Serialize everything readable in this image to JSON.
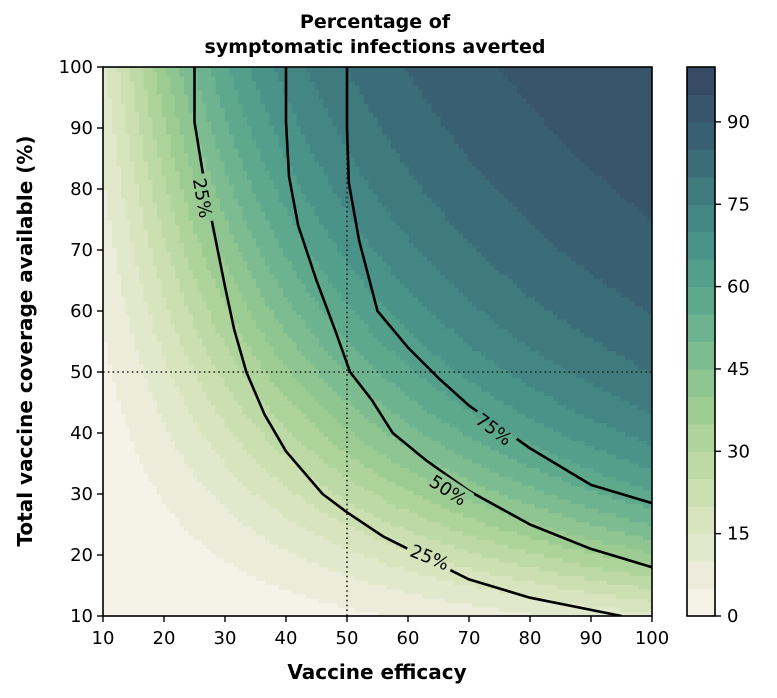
{
  "chart_data": {
    "type": "contour",
    "title": "Percentage of\nsymptomatic infections averted",
    "title_lines": [
      "Percentage of",
      "symptomatic infections averted"
    ],
    "xlabel": "Vaccine efficacy",
    "ylabel": "Total vaccine coverage available (%)",
    "xlim": [
      10,
      100
    ],
    "ylim": [
      10,
      100
    ],
    "xticks": [
      10,
      20,
      30,
      40,
      50,
      60,
      70,
      80,
      90,
      100
    ],
    "yticks": [
      10,
      20,
      30,
      40,
      50,
      60,
      70,
      80,
      90,
      100
    ],
    "reference_lines": {
      "x": 50,
      "y": 50,
      "style": "dotted"
    },
    "colorbar": {
      "min": 0,
      "max": 100,
      "ticks": [
        0,
        15,
        30,
        45,
        60,
        75,
        90
      ],
      "level_step": 5,
      "colors": [
        "#f5f2e8",
        "#ebedda",
        "#e1e8cc",
        "#d7e4be",
        "#cbdfb1",
        "#bdd9a6",
        "#aed39b",
        "#9dcc93",
        "#8ec591",
        "#7dbc90",
        "#6db38f",
        "#5ea98e",
        "#539f8c",
        "#4a9389",
        "#438684",
        "#3e7a7e",
        "#3b6d78",
        "#396072",
        "#38556b",
        "#384b66"
      ],
      "top_color": "#383d63"
    },
    "contour_lines": [
      {
        "level": 25,
        "label": "25%",
        "points": [
          [
            25,
            100
          ],
          [
            25,
            91
          ],
          [
            26.3,
            83
          ],
          [
            28,
            74
          ],
          [
            30,
            64
          ],
          [
            31.5,
            57
          ],
          [
            33.5,
            50
          ],
          [
            36.5,
            43
          ],
          [
            40,
            37
          ],
          [
            46,
            30
          ],
          [
            50,
            27
          ],
          [
            56,
            23
          ],
          [
            63,
            19.5
          ],
          [
            70,
            16
          ],
          [
            80,
            13
          ],
          [
            90,
            11
          ],
          [
            95,
            10
          ]
        ]
      },
      {
        "level": 50,
        "label": "50%",
        "points": [
          [
            40,
            100
          ],
          [
            40,
            91
          ],
          [
            40.5,
            82
          ],
          [
            42,
            74
          ],
          [
            45,
            65
          ],
          [
            48,
            57
          ],
          [
            50.5,
            50
          ],
          [
            54,
            45.5
          ],
          [
            57.5,
            40
          ],
          [
            63,
            35.5
          ],
          [
            70,
            30.5
          ],
          [
            80,
            25
          ],
          [
            90,
            21
          ],
          [
            100,
            18
          ]
        ]
      },
      {
        "level": 75,
        "label": "75%",
        "points": [
          [
            50,
            100
          ],
          [
            50,
            90
          ],
          [
            50.3,
            81
          ],
          [
            52,
            71.5
          ],
          [
            55,
            60
          ],
          [
            60,
            54
          ],
          [
            65,
            49
          ],
          [
            70,
            44.5
          ],
          [
            80,
            37.5
          ],
          [
            90,
            31.5
          ],
          [
            100,
            28.5
          ]
        ]
      }
    ],
    "contour_labels": [
      {
        "text": "25%",
        "x": 26.2,
        "y": 78.5,
        "rotate": 80
      },
      {
        "text": "25%",
        "x": 63.5,
        "y": 19.5,
        "rotate": 22
      },
      {
        "text": "50%",
        "x": 66.5,
        "y": 30.5,
        "rotate": 33
      },
      {
        "text": "75%",
        "x": 74,
        "y": 40.5,
        "rotate": 37
      }
    ]
  }
}
